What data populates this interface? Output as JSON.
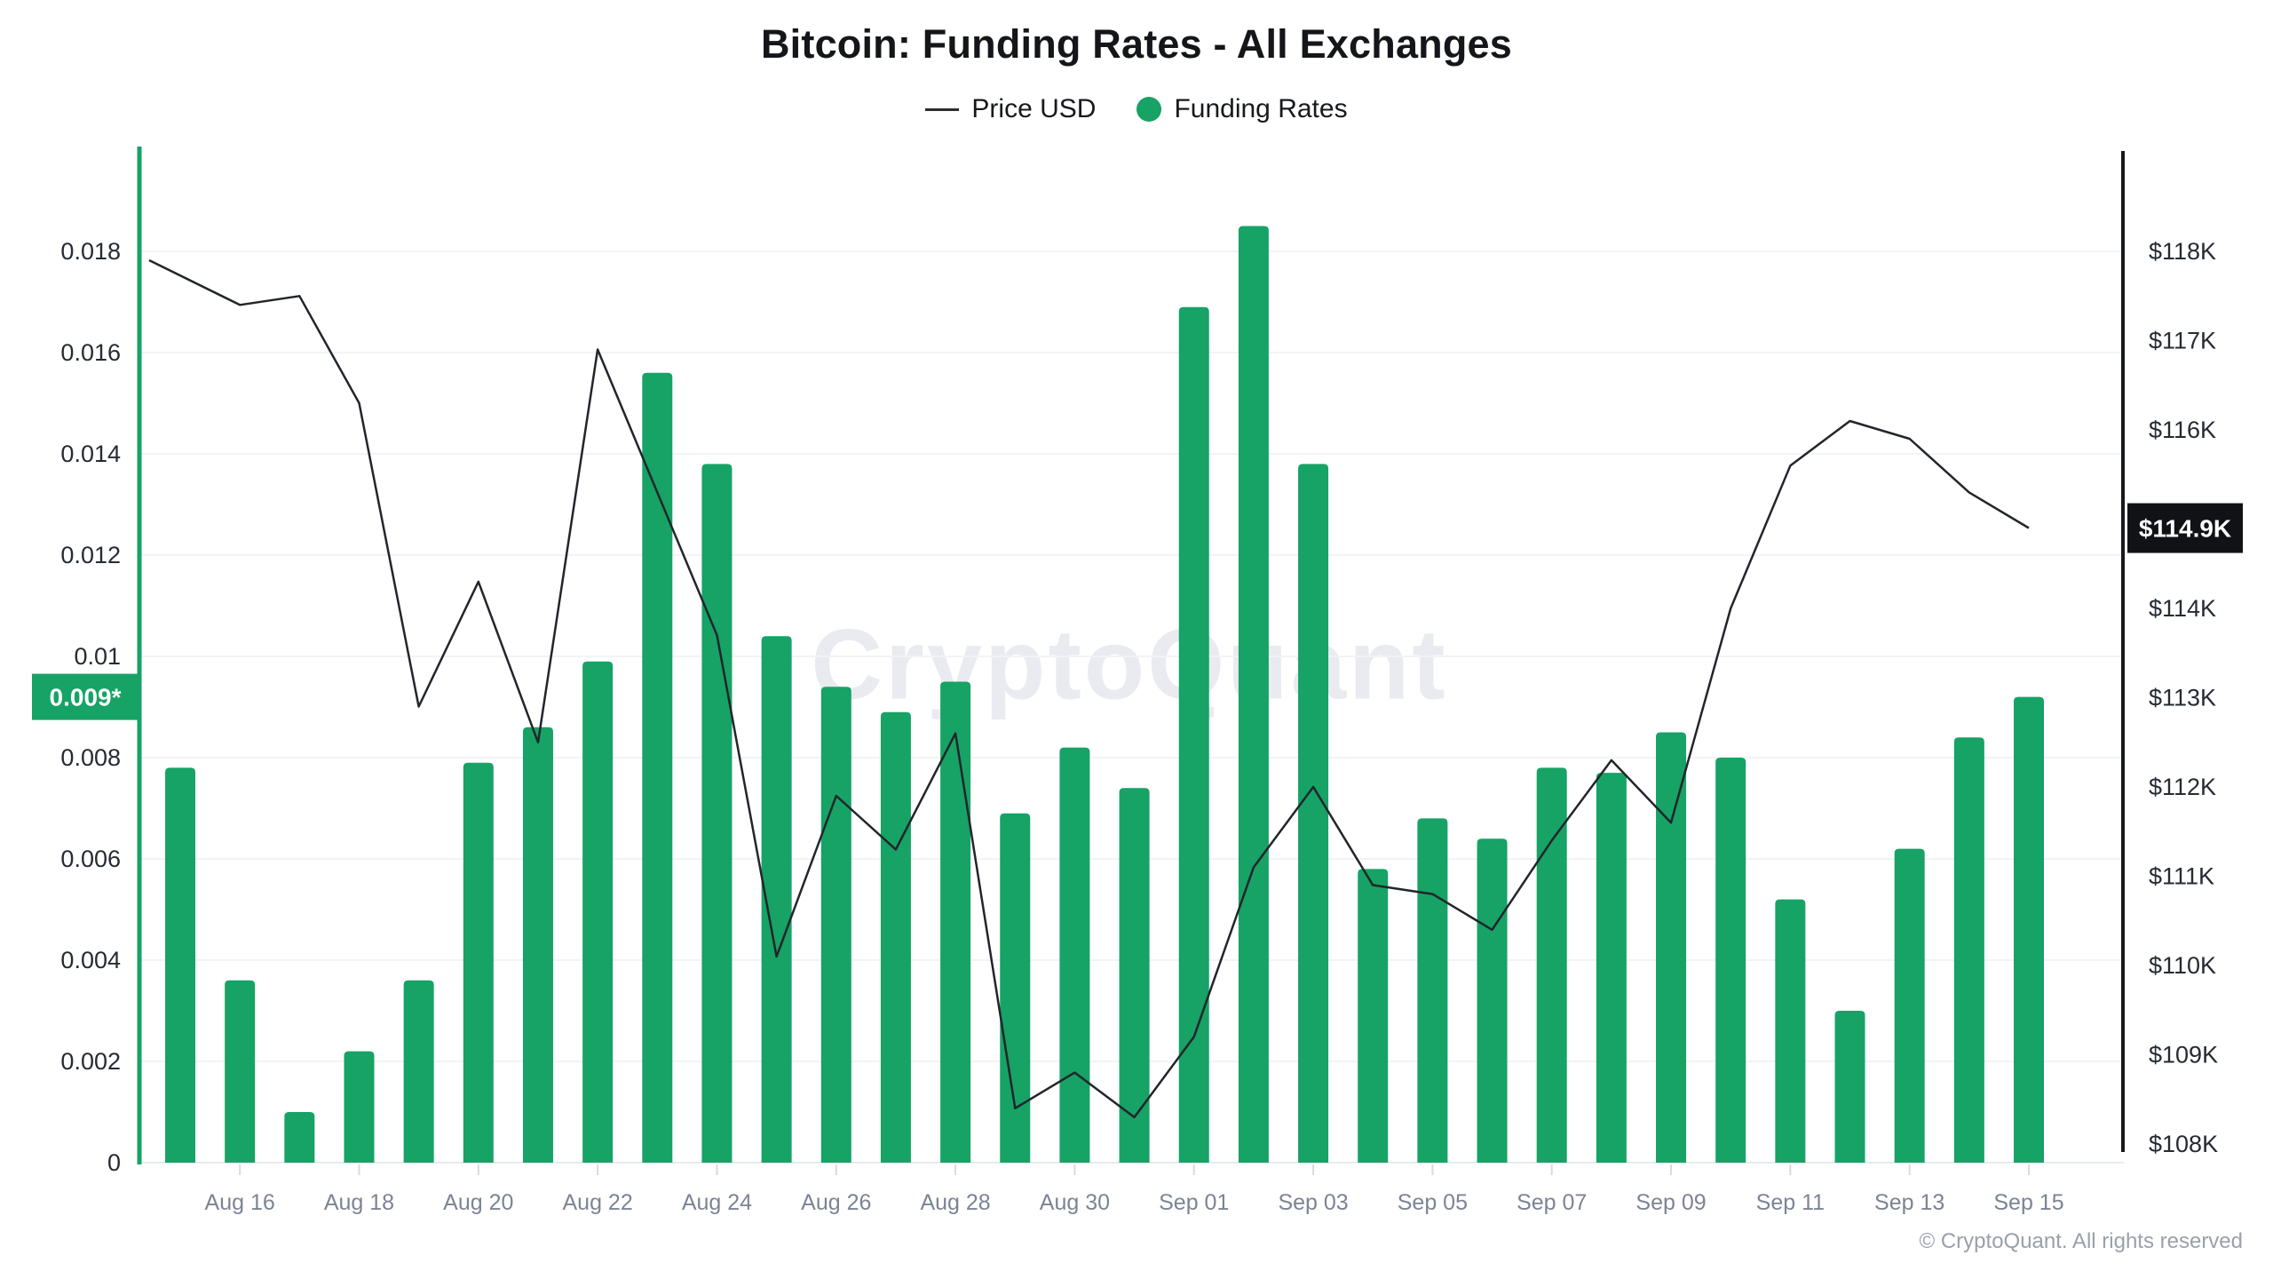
{
  "title": "Bitcoin: Funding Rates - All Exchanges",
  "legend": [
    {
      "label": "Price USD",
      "marker": "line",
      "color": "#2a2d33"
    },
    {
      "label": "Funding Rates",
      "marker": "dot",
      "color": "#16a365"
    }
  ],
  "watermark": "CryptoQuant",
  "footer": "© CryptoQuant. All rights reserved",
  "colors": {
    "bar": "#16a365",
    "line": "#22252b",
    "grid": "#f2f3f5",
    "baseline": "#e8eaed",
    "tick_stub": "#d8dade",
    "axis_left": "#16a365",
    "axis_right": "#17191e",
    "tick_text": "#262b33",
    "x_label_text": "#7c8494",
    "badge_left_bg": "#16a365",
    "badge_right_bg": "#101216",
    "badge_text": "#ffffff"
  },
  "axes": {
    "left": {
      "ticks": [
        {
          "label": "0",
          "value": 0
        },
        {
          "label": "0.002",
          "value": 0.002
        },
        {
          "label": "0.004",
          "value": 0.004
        },
        {
          "label": "0.006",
          "value": 0.006
        },
        {
          "label": "0.008",
          "value": 0.008
        },
        {
          "label": "0.01",
          "value": 0.01
        },
        {
          "label": "0.012",
          "value": 0.012
        },
        {
          "label": "0.014",
          "value": 0.014
        },
        {
          "label": "0.016",
          "value": 0.016
        },
        {
          "label": "0.018",
          "value": 0.018
        }
      ],
      "badge": {
        "label": "0.009*",
        "value": 0.0092
      }
    },
    "right": {
      "ticks": [
        {
          "label": "$108K",
          "value": 108
        },
        {
          "label": "$109K",
          "value": 109
        },
        {
          "label": "$110K",
          "value": 110
        },
        {
          "label": "$111K",
          "value": 111
        },
        {
          "label": "$112K",
          "value": 112
        },
        {
          "label": "$113K",
          "value": 113
        },
        {
          "label": "$114K",
          "value": 114
        },
        {
          "label": "$116K",
          "value": 116
        },
        {
          "label": "$117K",
          "value": 117
        },
        {
          "label": "$118K",
          "value": 118
        }
      ],
      "badge": {
        "label": "$114.9K",
        "value": 114.9
      }
    },
    "x": {
      "ticks": [
        {
          "label": "Aug 16",
          "index": 1
        },
        {
          "label": "Aug 18",
          "index": 3
        },
        {
          "label": "Aug 20",
          "index": 5
        },
        {
          "label": "Aug 22",
          "index": 7
        },
        {
          "label": "Aug 24",
          "index": 9
        },
        {
          "label": "Aug 26",
          "index": 11
        },
        {
          "label": "Aug 28",
          "index": 13
        },
        {
          "label": "Aug 30",
          "index": 15
        },
        {
          "label": "Sep 01",
          "index": 17
        },
        {
          "label": "Sep 03",
          "index": 19
        },
        {
          "label": "Sep 05",
          "index": 21
        },
        {
          "label": "Sep 07",
          "index": 23
        },
        {
          "label": "Sep 09",
          "index": 25
        },
        {
          "label": "Sep 11",
          "index": 27
        },
        {
          "label": "Sep 13",
          "index": 29
        },
        {
          "label": "Sep 15",
          "index": 31
        }
      ]
    }
  },
  "chart_data": {
    "type": "bar+line",
    "title": "Bitcoin: Funding Rates - All Exchanges",
    "categories": [
      "Aug 15",
      "Aug 16",
      "Aug 17",
      "Aug 18",
      "Aug 19",
      "Aug 20",
      "Aug 21",
      "Aug 22",
      "Aug 23",
      "Aug 24",
      "Aug 25",
      "Aug 26",
      "Aug 27",
      "Aug 28",
      "Aug 29",
      "Aug 30",
      "Aug 31",
      "Sep 01",
      "Sep 02",
      "Sep 03",
      "Sep 04",
      "Sep 05",
      "Sep 06",
      "Sep 07",
      "Sep 08",
      "Sep 09",
      "Sep 10",
      "Sep 11",
      "Sep 12",
      "Sep 13",
      "Sep 14",
      "Sep 15"
    ],
    "series": [
      {
        "name": "Funding Rates",
        "type": "bar",
        "axis": "left",
        "color": "#16a365",
        "values": [
          0.0078,
          0.0036,
          0.001,
          0.0022,
          0.0036,
          0.0079,
          0.0086,
          0.0099,
          0.0156,
          0.0138,
          0.0104,
          0.0094,
          0.0089,
          0.0095,
          0.0069,
          0.0082,
          0.0074,
          0.0169,
          0.0185,
          0.0138,
          0.0058,
          0.0068,
          0.0064,
          0.0078,
          0.0077,
          0.0085,
          0.008,
          0.0052,
          0.003,
          0.0062,
          0.0084,
          0.0092
        ]
      },
      {
        "name": "Price USD",
        "type": "line",
        "axis": "right",
        "color": "#22252b",
        "values": [
          117.9,
          117.4,
          117.5,
          116.3,
          112.9,
          114.3,
          112.5,
          116.9,
          115.3,
          113.7,
          110.1,
          111.9,
          111.3,
          112.6,
          108.4,
          108.8,
          108.3,
          109.2,
          111.1,
          112.0,
          110.9,
          110.8,
          110.4,
          111.4,
          112.3,
          111.6,
          114.0,
          115.6,
          116.1,
          115.9,
          115.3,
          114.9
        ]
      }
    ],
    "left_axis_label": "Funding Rates",
    "right_axis_label": "Price USD (K)",
    "left_range": [
      0,
      0.02
    ],
    "right_range": [
      107.8,
      119.1
    ],
    "grid": "horizontal",
    "legend_position": "top",
    "latest_funding_badge": "0.009*",
    "latest_price_badge": "$114.9K"
  }
}
